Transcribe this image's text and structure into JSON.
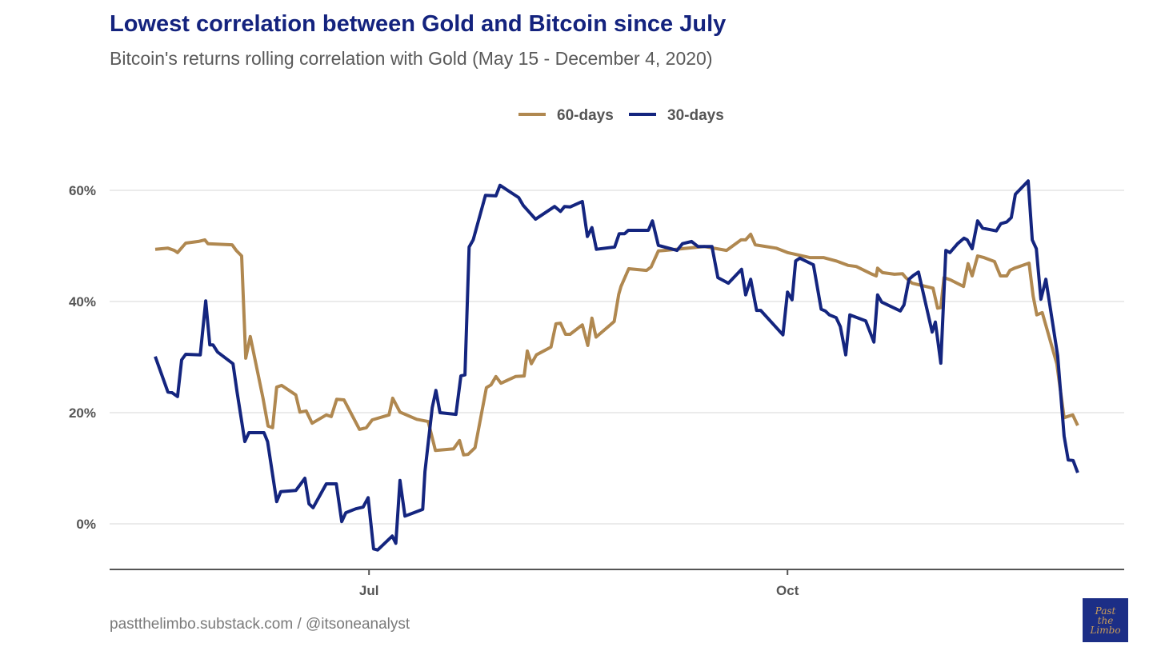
{
  "chart_data": {
    "type": "line",
    "title": "Lowest correlation between Gold and Bitcoin since July",
    "subtitle": "Bitcoin's returns rolling correlation with Gold (May 15 - December 4, 2020)",
    "xlabel": "",
    "ylabel": "",
    "x_unit": "days since May 15, 2020",
    "xlim": [
      -46,
      207
    ],
    "ylim": [
      -8,
      68
    ],
    "x_ticks": [
      {
        "label": "Jul",
        "day": 47
      },
      {
        "label": "Oct",
        "day": 139
      }
    ],
    "y_ticks": [
      {
        "label": "0%",
        "value": 0
      },
      {
        "label": "20%",
        "value": 20
      },
      {
        "label": "40%",
        "value": 40
      },
      {
        "label": "60%",
        "value": 60
      }
    ],
    "grid": "horizontal",
    "legend_position": "top",
    "series": [
      {
        "name": "60-days",
        "color": "#b08850",
        "points": [
          [
            0,
            49.4
          ],
          [
            2.8,
            49.6
          ],
          [
            4.2,
            49.2
          ],
          [
            4.9,
            48.8
          ],
          [
            6.7,
            50.5
          ],
          [
            9.5,
            50.8
          ],
          [
            10.9,
            51.1
          ],
          [
            11.6,
            50.4
          ],
          [
            16.9,
            50.2
          ],
          [
            17.8,
            49.2
          ],
          [
            19,
            48.2
          ],
          [
            19.9,
            29.8
          ],
          [
            20.9,
            33.7
          ],
          [
            23.7,
            22.6
          ],
          [
            24.8,
            17.6
          ],
          [
            25.8,
            17.3
          ],
          [
            26.7,
            24.6
          ],
          [
            27.8,
            24.9
          ],
          [
            30.9,
            23.2
          ],
          [
            31.8,
            20.1
          ],
          [
            33.2,
            20.3
          ],
          [
            34.5,
            18.1
          ],
          [
            37.6,
            19.6
          ],
          [
            38.7,
            19.3
          ],
          [
            39.9,
            22.4
          ],
          [
            41.5,
            22.3
          ],
          [
            44.9,
            17
          ],
          [
            46.4,
            17.3
          ],
          [
            47.7,
            18.7
          ],
          [
            51.4,
            19.6
          ],
          [
            52.2,
            22.6
          ],
          [
            53.8,
            20.1
          ],
          [
            57.5,
            18.8
          ],
          [
            60,
            18.4
          ],
          [
            61.6,
            13.2
          ],
          [
            65.6,
            13.5
          ],
          [
            66.9,
            15
          ],
          [
            67.8,
            12.4
          ],
          [
            68.8,
            12.5
          ],
          [
            70.3,
            13.7
          ],
          [
            72.8,
            24.5
          ],
          [
            73.8,
            25
          ],
          [
            74.9,
            26.5
          ],
          [
            76,
            25.3
          ],
          [
            79.2,
            26.5
          ],
          [
            81.1,
            26.6
          ],
          [
            81.8,
            31.1
          ],
          [
            82.7,
            28.8
          ],
          [
            83.8,
            30.4
          ],
          [
            87,
            31.8
          ],
          [
            88.1,
            36
          ],
          [
            89.1,
            36.1
          ],
          [
            90.2,
            34.1
          ],
          [
            91.2,
            34.1
          ],
          [
            93.9,
            35.8
          ],
          [
            95.1,
            32.1
          ],
          [
            96,
            37
          ],
          [
            96.9,
            33.6
          ],
          [
            100.9,
            36.4
          ],
          [
            101.9,
            41.3
          ],
          [
            102.4,
            42.7
          ],
          [
            104.1,
            45.9
          ],
          [
            108,
            45.6
          ],
          [
            109,
            46.2
          ],
          [
            110.6,
            49.1
          ],
          [
            112,
            49.2
          ],
          [
            120.7,
            49.9
          ],
          [
            125.6,
            49.2
          ],
          [
            128.8,
            51.1
          ],
          [
            129.8,
            51.1
          ],
          [
            130.9,
            52.1
          ],
          [
            131.9,
            50.2
          ],
          [
            136.5,
            49.6
          ],
          [
            139,
            48.8
          ],
          [
            143.9,
            47.9
          ],
          [
            146.9,
            47.9
          ],
          [
            149.7,
            47.3
          ],
          [
            152.3,
            46.5
          ],
          [
            154.1,
            46.3
          ],
          [
            157.6,
            44.9
          ],
          [
            158.5,
            44.6
          ],
          [
            158.8,
            46
          ],
          [
            159.9,
            45.2
          ],
          [
            162.5,
            44.9
          ],
          [
            164.3,
            45
          ],
          [
            165,
            44.3
          ],
          [
            166.4,
            43.3
          ],
          [
            171,
            42.4
          ],
          [
            172,
            38.8
          ],
          [
            172.7,
            38.9
          ],
          [
            173.4,
            44.3
          ],
          [
            174.8,
            43.9
          ],
          [
            177.7,
            42.7
          ],
          [
            178.7,
            46.8
          ],
          [
            179.6,
            44.6
          ],
          [
            180.8,
            48.2
          ],
          [
            182.2,
            47.9
          ],
          [
            184.5,
            47.2
          ],
          [
            185.8,
            44.6
          ],
          [
            187.2,
            44.6
          ],
          [
            187.9,
            45.6
          ],
          [
            188.9,
            46
          ],
          [
            192.1,
            46.9
          ],
          [
            193,
            41
          ],
          [
            193.8,
            37.6
          ],
          [
            195,
            38
          ],
          [
            198.2,
            28.8
          ],
          [
            199.8,
            19.1
          ],
          [
            200.9,
            19.4
          ],
          [
            201.7,
            19.6
          ],
          [
            202.8,
            17.7
          ]
        ]
      },
      {
        "name": "30-days",
        "color": "#14257f",
        "points": [
          [
            0,
            30.1
          ],
          [
            2.8,
            23.7
          ],
          [
            3.7,
            23.6
          ],
          [
            4.9,
            22.9
          ],
          [
            5.8,
            29.5
          ],
          [
            6.7,
            30.5
          ],
          [
            9.9,
            30.4
          ],
          [
            11.1,
            40.1
          ],
          [
            12,
            32.2
          ],
          [
            12.7,
            32.2
          ],
          [
            13.7,
            30.9
          ],
          [
            17.1,
            28.8
          ],
          [
            18,
            23.7
          ],
          [
            19.7,
            14.8
          ],
          [
            20.6,
            16.4
          ],
          [
            23.9,
            16.4
          ],
          [
            24.7,
            14.8
          ],
          [
            26.7,
            4
          ],
          [
            27.6,
            5.8
          ],
          [
            30.9,
            6
          ],
          [
            32,
            7.2
          ],
          [
            32.9,
            8.2
          ],
          [
            33.8,
            3.6
          ],
          [
            34.7,
            2.9
          ],
          [
            37.6,
            7.2
          ],
          [
            39.8,
            7.2
          ],
          [
            41,
            0.4
          ],
          [
            41.9,
            2
          ],
          [
            44.1,
            2.7
          ],
          [
            45.7,
            3
          ],
          [
            46.8,
            4.7
          ],
          [
            48,
            -4.5
          ],
          [
            48.9,
            -4.7
          ],
          [
            52.1,
            -2.2
          ],
          [
            52.9,
            -3.5
          ],
          [
            53.8,
            7.8
          ],
          [
            54.9,
            1.4
          ],
          [
            58.8,
            2.6
          ],
          [
            59.3,
            9.4
          ],
          [
            60.9,
            20.9
          ],
          [
            61.7,
            24
          ],
          [
            62.6,
            20
          ],
          [
            66.1,
            19.7
          ],
          [
            67.2,
            26.6
          ],
          [
            68.1,
            26.8
          ],
          [
            69,
            49.8
          ],
          [
            69.9,
            51.1
          ],
          [
            72.6,
            59.1
          ],
          [
            74.9,
            59
          ],
          [
            75.8,
            60.9
          ],
          [
            79.9,
            58.7
          ],
          [
            80.9,
            57.3
          ],
          [
            83.6,
            54.8
          ],
          [
            87.8,
            57.1
          ],
          [
            89.1,
            56.2
          ],
          [
            90,
            57.1
          ],
          [
            91.2,
            57
          ],
          [
            93.9,
            58
          ],
          [
            95,
            51.7
          ],
          [
            96,
            53.3
          ],
          [
            97,
            49.4
          ],
          [
            101,
            49.8
          ],
          [
            102,
            52.2
          ],
          [
            103.2,
            52.2
          ],
          [
            104,
            52.8
          ],
          [
            108.4,
            52.8
          ],
          [
            109.3,
            54.5
          ],
          [
            110.6,
            50.1
          ],
          [
            114.7,
            49.2
          ],
          [
            115.9,
            50.4
          ],
          [
            117.9,
            50.8
          ],
          [
            119.3,
            49.9
          ],
          [
            122.4,
            49.9
          ],
          [
            123.7,
            44.3
          ],
          [
            126,
            43.3
          ],
          [
            128.9,
            45.8
          ],
          [
            129.8,
            41.2
          ],
          [
            130.9,
            44
          ],
          [
            132.2,
            38.4
          ],
          [
            133.1,
            38.4
          ],
          [
            138,
            34
          ],
          [
            139,
            41.7
          ],
          [
            140,
            40.3
          ],
          [
            140.8,
            47.3
          ],
          [
            141.7,
            47.8
          ],
          [
            144.7,
            46.6
          ],
          [
            146.4,
            38.6
          ],
          [
            147.3,
            38.3
          ],
          [
            148.2,
            37.6
          ],
          [
            149.7,
            37.1
          ],
          [
            150.6,
            35.5
          ],
          [
            151.8,
            30.4
          ],
          [
            152.7,
            37.6
          ],
          [
            156.2,
            36.5
          ],
          [
            158,
            32.7
          ],
          [
            158.8,
            41.2
          ],
          [
            159.7,
            39.9
          ],
          [
            163.8,
            38.3
          ],
          [
            164.6,
            39.4
          ],
          [
            165.7,
            44
          ],
          [
            166.7,
            44.7
          ],
          [
            167.8,
            45.3
          ],
          [
            170.8,
            34.5
          ],
          [
            171.5,
            36.3
          ],
          [
            172.7,
            28.9
          ],
          [
            173.8,
            49.2
          ],
          [
            174.7,
            48.8
          ],
          [
            176.4,
            50.4
          ],
          [
            177.8,
            51.4
          ],
          [
            178.5,
            51.1
          ],
          [
            179.6,
            49.5
          ],
          [
            180.8,
            54.5
          ],
          [
            181.9,
            53.2
          ],
          [
            184.9,
            52.7
          ],
          [
            185.9,
            54
          ],
          [
            187.2,
            54.3
          ],
          [
            188.2,
            55.1
          ],
          [
            189.1,
            59.3
          ],
          [
            191.9,
            61.7
          ],
          [
            192.8,
            51.1
          ],
          [
            193.7,
            49.5
          ],
          [
            194.7,
            40.4
          ],
          [
            195.8,
            44
          ],
          [
            198.4,
            30.2
          ],
          [
            199.8,
            15.8
          ],
          [
            200.7,
            11.5
          ],
          [
            201.8,
            11.4
          ],
          [
            202.8,
            9.2
          ]
        ]
      }
    ]
  },
  "footer": "pastthelimbo.substack.com / @itsoneanalyst",
  "logo_text": [
    "Past",
    "the",
    "Limbo"
  ]
}
